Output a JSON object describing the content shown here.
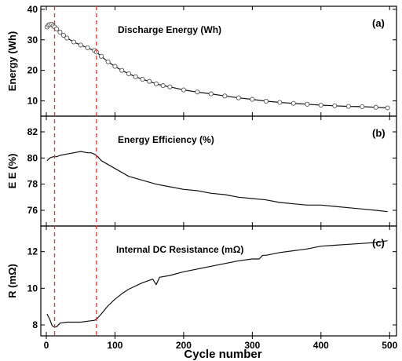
{
  "figure": {
    "xlabel": "Cycle number",
    "x_ticks": [
      0,
      100,
      200,
      300,
      400,
      500
    ],
    "xlim": [
      -8,
      510
    ],
    "vlines": {
      "x": [
        12,
        73
      ],
      "color": "#e8322f"
    },
    "axis_color": "#000000",
    "line_color": "#111111"
  },
  "chart_data": [
    {
      "type": "line",
      "title": "Discharge Energy (Wh)",
      "panel_tag": "(a)",
      "ylabel": "Energy (Wh)",
      "ylim": [
        5,
        41
      ],
      "y_ticks": [
        10,
        20,
        30,
        40
      ],
      "marker": "circle-open",
      "series": [
        {
          "x": [
            1,
            3,
            5,
            8,
            10,
            12,
            15,
            20,
            25,
            30,
            40,
            50,
            60,
            70,
            73,
            80,
            90,
            100,
            110,
            120,
            130,
            140,
            150,
            160,
            170,
            180,
            200,
            220,
            240,
            260,
            280,
            300,
            320,
            340,
            360,
            380,
            400,
            420,
            440,
            460,
            480,
            497
          ],
          "values": [
            34.2,
            34.8,
            35.0,
            35.1,
            34.6,
            34.2,
            33.6,
            32.5,
            31.5,
            30.6,
            29.3,
            28.3,
            27.4,
            26.5,
            26.0,
            24.6,
            22.8,
            21.3,
            20.0,
            18.9,
            17.9,
            17.1,
            16.4,
            15.6,
            15.0,
            14.6,
            13.6,
            12.9,
            12.3,
            11.6,
            11.0,
            10.5,
            9.9,
            9.5,
            9.2,
            8.9,
            8.6,
            8.4,
            8.2,
            8.1,
            7.9,
            7.7
          ]
        }
      ]
    },
    {
      "type": "line",
      "title": "Energy Efficiency (%)",
      "panel_tag": "(b)",
      "ylabel": "E E (%)",
      "ylim": [
        74.8,
        83.2
      ],
      "y_ticks": [
        76,
        78,
        80,
        82
      ],
      "series": [
        {
          "x": [
            1,
            5,
            10,
            15,
            20,
            30,
            40,
            50,
            60,
            65,
            70,
            75,
            80,
            90,
            100,
            110,
            120,
            140,
            160,
            180,
            200,
            220,
            240,
            260,
            280,
            300,
            320,
            340,
            360,
            380,
            400,
            420,
            440,
            460,
            480,
            497
          ],
          "values": [
            79.8,
            80.0,
            80.1,
            80.1,
            80.2,
            80.3,
            80.4,
            80.5,
            80.4,
            80.4,
            80.3,
            80.1,
            79.8,
            79.5,
            79.2,
            78.9,
            78.6,
            78.3,
            78.0,
            77.8,
            77.6,
            77.5,
            77.3,
            77.2,
            77.0,
            76.9,
            76.8,
            76.6,
            76.5,
            76.4,
            76.4,
            76.3,
            76.2,
            76.1,
            76.0,
            75.9
          ]
        }
      ]
    },
    {
      "type": "line",
      "title": "Internal DC Resistance (mΩ)",
      "panel_tag": "(c)",
      "ylabel": "R (mΩ)",
      "ylim": [
        7.4,
        13.4
      ],
      "y_ticks": [
        8,
        10,
        12
      ],
      "series": [
        {
          "x": [
            1,
            5,
            8,
            10,
            12,
            15,
            20,
            30,
            40,
            50,
            60,
            70,
            73,
            80,
            90,
            100,
            110,
            120,
            140,
            155,
            160,
            165,
            180,
            200,
            220,
            240,
            260,
            280,
            300,
            310,
            315,
            320,
            340,
            360,
            380,
            400,
            420,
            440,
            460,
            480,
            497
          ],
          "values": [
            8.6,
            8.3,
            8.0,
            7.9,
            7.9,
            7.9,
            8.1,
            8.15,
            8.15,
            8.15,
            8.2,
            8.25,
            8.3,
            8.6,
            9.05,
            9.4,
            9.7,
            9.95,
            10.3,
            10.5,
            10.2,
            10.6,
            10.7,
            10.9,
            11.05,
            11.2,
            11.35,
            11.5,
            11.6,
            11.6,
            11.8,
            11.8,
            11.95,
            12.05,
            12.15,
            12.3,
            12.35,
            12.4,
            12.45,
            12.5,
            12.6
          ]
        }
      ]
    }
  ]
}
